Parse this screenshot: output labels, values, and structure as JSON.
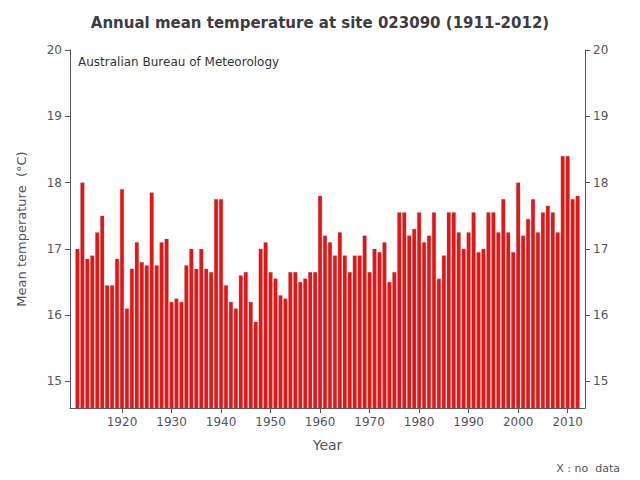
{
  "chart_data": {
    "type": "bar",
    "title": "Annual mean temperature at site 023090 (1911-2012)",
    "xlabel": "Year",
    "ylabel": "Mean temperature  (°C)",
    "annotation": "Australian Bureau of Meteorology",
    "footnote": "X : no  data",
    "color": "#EE1111",
    "grid": false,
    "xlim": [
      1909.5,
      2013.5
    ],
    "xticks": [
      1920,
      1930,
      1940,
      1950,
      1960,
      1970,
      1980,
      1990,
      2000,
      2010
    ],
    "ylim": [
      14.6,
      20.0
    ],
    "yticks": [
      15,
      16,
      17,
      18,
      19,
      20
    ],
    "y2lim": [
      14.6,
      20.0
    ],
    "y2ticks": [
      15,
      16,
      17,
      18,
      19,
      20
    ],
    "x": [
      1911,
      1912,
      1913,
      1914,
      1915,
      1916,
      1917,
      1918,
      1919,
      1920,
      1921,
      1922,
      1923,
      1924,
      1925,
      1926,
      1927,
      1928,
      1929,
      1930,
      1931,
      1932,
      1933,
      1934,
      1935,
      1936,
      1937,
      1938,
      1939,
      1940,
      1941,
      1942,
      1943,
      1944,
      1945,
      1946,
      1947,
      1948,
      1949,
      1950,
      1951,
      1952,
      1953,
      1954,
      1955,
      1956,
      1957,
      1958,
      1959,
      1960,
      1961,
      1962,
      1963,
      1964,
      1965,
      1966,
      1967,
      1968,
      1969,
      1970,
      1971,
      1972,
      1973,
      1974,
      1975,
      1976,
      1977,
      1978,
      1979,
      1980,
      1981,
      1982,
      1983,
      1984,
      1985,
      1986,
      1987,
      1988,
      1989,
      1990,
      1991,
      1992,
      1993,
      1994,
      1995,
      1996,
      1997,
      1998,
      1999,
      2000,
      2001,
      2002,
      2003,
      2004,
      2005,
      2006,
      2007,
      2008,
      2009,
      2010,
      2011,
      2012
    ],
    "values": [
      17.0,
      18.0,
      16.85,
      16.9,
      17.25,
      17.5,
      16.45,
      16.45,
      16.85,
      17.9,
      16.1,
      16.7,
      17.1,
      16.8,
      16.75,
      17.85,
      16.75,
      17.1,
      17.15,
      16.2,
      16.25,
      16.2,
      16.75,
      17.0,
      16.7,
      17.0,
      16.7,
      16.65,
      17.75,
      17.75,
      16.45,
      16.2,
      16.1,
      16.6,
      16.65,
      16.2,
      15.9,
      17.0,
      17.1,
      16.65,
      16.55,
      16.3,
      16.25,
      16.65,
      16.65,
      16.5,
      16.55,
      16.65,
      16.65,
      17.8,
      17.2,
      17.1,
      16.9,
      17.25,
      16.9,
      16.65,
      16.9,
      16.9,
      17.2,
      16.65,
      17.0,
      16.95,
      17.1,
      16.5,
      16.65,
      17.55,
      17.55,
      17.2,
      17.3,
      17.55,
      17.1,
      17.2,
      17.55,
      16.55,
      16.9,
      17.55,
      17.55,
      17.25,
      17.0,
      17.25,
      17.55,
      16.95,
      17.0,
      17.55,
      17.55,
      17.25,
      17.75,
      17.25,
      16.95,
      18.0,
      17.2,
      17.45,
      17.75,
      17.25,
      17.55,
      17.65,
      17.55,
      17.25,
      18.4,
      18.4,
      17.75,
      17.8
    ]
  }
}
